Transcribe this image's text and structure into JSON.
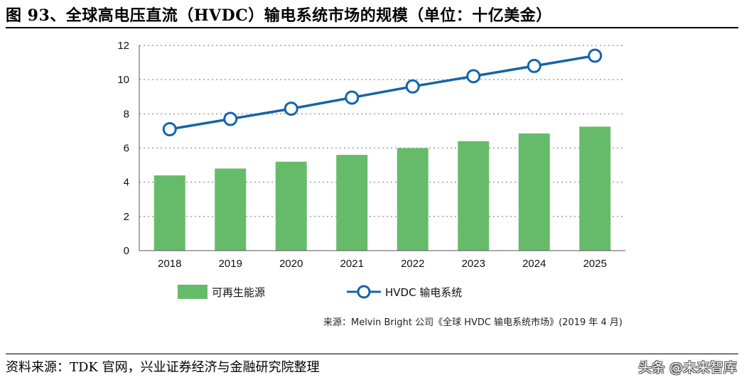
{
  "title": "图 93、全球高电压直流（HVDC）输电系统市场的规模（单位：十亿美金）",
  "footer": "资料来源：TDK 官网，兴业证券经济与金融研究院整理",
  "watermark": "头条 @未来智库",
  "chart_data": {
    "type": "bar+line",
    "categories": [
      "2018",
      "2019",
      "2020",
      "2021",
      "2022",
      "2023",
      "2024",
      "2025"
    ],
    "series": [
      {
        "name": "可再生能源",
        "type": "bar",
        "color": "#66bb6a",
        "values": [
          4.4,
          4.8,
          5.2,
          5.6,
          6.0,
          6.4,
          6.85,
          7.25
        ]
      },
      {
        "name": "HVDC 输电系统",
        "type": "line",
        "color": "#1565a8",
        "values": [
          7.1,
          7.7,
          8.3,
          8.95,
          9.6,
          10.2,
          10.8,
          11.4
        ]
      }
    ],
    "ylim": [
      0,
      12
    ],
    "yticks": [
      0,
      2,
      4,
      6,
      8,
      10,
      12
    ],
    "grid": "dotted horizontal",
    "legend_position": "bottom",
    "source": "来源：Melvin Bright 公司《全球 HVDC 输电系统市场》(2019 年 4 月)"
  }
}
